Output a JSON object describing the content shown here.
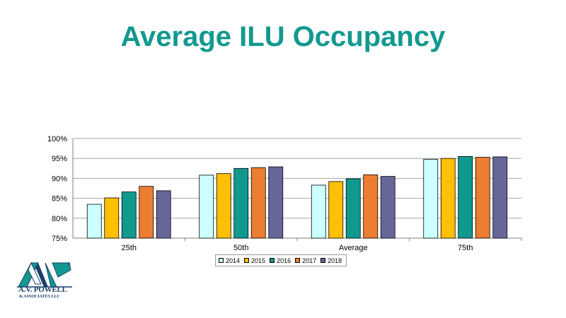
{
  "slide": {
    "title": "Average ILU Occupancy"
  },
  "chart_data": {
    "type": "bar",
    "title": "",
    "xlabel": "",
    "ylabel": "",
    "categories": [
      "25th",
      "50th",
      "Average",
      "75th"
    ],
    "series": [
      {
        "name": "2014",
        "color": "#ccffff",
        "values": [
          83.5,
          90.8,
          88.3,
          94.8
        ]
      },
      {
        "name": "2015",
        "color": "#ffc000",
        "values": [
          85.1,
          91.2,
          89.2,
          95.0
        ]
      },
      {
        "name": "2016",
        "color": "#11998f",
        "values": [
          86.6,
          92.5,
          89.9,
          95.5
        ]
      },
      {
        "name": "2017",
        "color": "#ed7d31",
        "values": [
          88.0,
          92.7,
          90.9,
          95.3
        ]
      },
      {
        "name": "2018",
        "color": "#666699",
        "values": [
          86.9,
          92.9,
          90.5,
          95.4
        ]
      }
    ],
    "ylim": [
      75,
      100
    ],
    "yticks": [
      "75%",
      "80%",
      "85%",
      "90%",
      "95%",
      "100%"
    ],
    "ytick_values": [
      75,
      80,
      85,
      90,
      95,
      100
    ],
    "grid": true,
    "legend_position": "bottom"
  },
  "logo": {
    "name": "A.V. POWELL",
    "sub": "& ASSOCIATES LLC",
    "registered_mark": "®"
  }
}
